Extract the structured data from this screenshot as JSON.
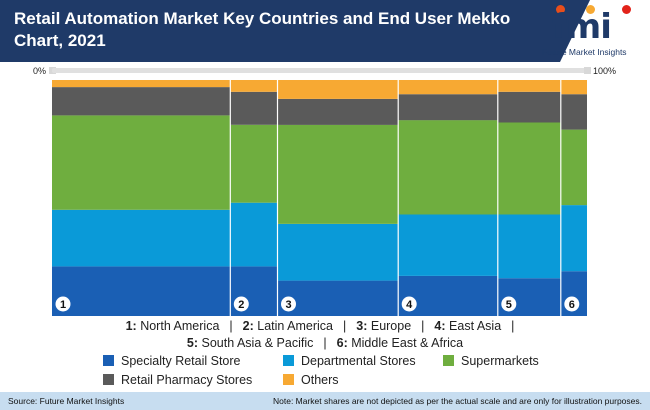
{
  "header": {
    "title": "Retail Automation Market Key Countries and End User Mekko Chart, 2021",
    "logo_text": "fmi",
    "logo_subtitle": "Future Market Insights"
  },
  "scale": {
    "left_label": "0%",
    "right_label": "100%"
  },
  "chart_data": {
    "type": "mekko",
    "title": "Retail Automation Market Key Countries and End User Mekko Chart, 2021",
    "categories": [
      "1",
      "2",
      "3",
      "4",
      "5",
      "6"
    ],
    "widths": [
      34,
      9,
      23,
      19,
      12,
      5
    ],
    "series": [
      {
        "name": "Specialty Retail Store",
        "color": "#1a5fb4",
        "values": [
          21,
          21,
          15,
          17,
          16,
          19
        ]
      },
      {
        "name": "Departmental Stores",
        "color": "#0a9ad8",
        "values": [
          24,
          27,
          24,
          26,
          27,
          28
        ]
      },
      {
        "name": "Supermarkets",
        "color": "#6fae3f",
        "values": [
          40,
          33,
          42,
          40,
          39,
          32
        ]
      },
      {
        "name": "Retail Pharmacy Stores",
        "color": "#5a5a5a",
        "values": [
          12,
          14,
          11,
          11,
          13,
          15
        ]
      },
      {
        "name": "Others",
        "color": "#f7a933",
        "values": [
          3,
          5,
          8,
          6,
          5,
          6
        ]
      }
    ],
    "ylim": [
      0,
      100
    ]
  },
  "legend": {
    "regions": [
      {
        "num": "1",
        "name": "North America"
      },
      {
        "num": "2",
        "name": "Latin America"
      },
      {
        "num": "3",
        "name": "Europe"
      },
      {
        "num": "4",
        "name": "East Asia"
      },
      {
        "num": "5",
        "name": "South Asia & Pacific"
      },
      {
        "num": "6",
        "name": "Middle East & Africa"
      }
    ],
    "series_labels": [
      "Specialty Retail Store",
      "Departmental Stores",
      "Supermarkets",
      "Retail Pharmacy Stores",
      "Others"
    ],
    "series_colors": [
      "#1a5fb4",
      "#0a9ad8",
      "#6fae3f",
      "#5a5a5a",
      "#f7a933"
    ]
  },
  "footer": {
    "source": "Source: Future Market Insights",
    "note": "Note: Market shares are not depicted as per the actual scale and are only for illustration purposes."
  }
}
